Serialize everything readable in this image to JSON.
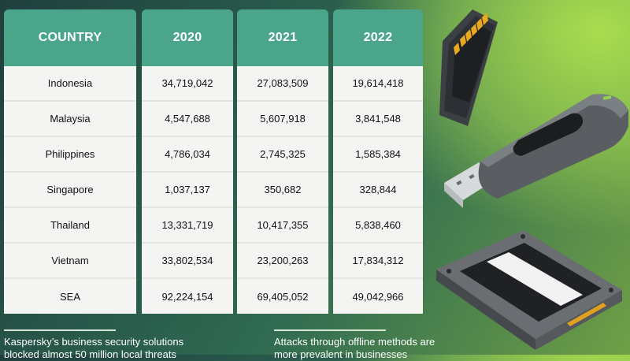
{
  "table": {
    "headers": [
      "COUNTRY",
      "2020",
      "2021",
      "2022"
    ],
    "rows": [
      {
        "country": "Indonesia",
        "y2020": "34,719,042",
        "y2021": "27,083,509",
        "y2022": "19,614,418"
      },
      {
        "country": "Malaysia",
        "y2020": "4,547,688",
        "y2021": "5,607,918",
        "y2022": "3,841,548"
      },
      {
        "country": "Philippines",
        "y2020": "4,786,034",
        "y2021": "2,745,325",
        "y2022": "1,585,384"
      },
      {
        "country": "Singapore",
        "y2020": "1,037,137",
        "y2021": "350,682",
        "y2022": "328,844"
      },
      {
        "country": "Thailand",
        "y2020": "13,331,719",
        "y2021": "10,417,355",
        "y2022": "5,838,460"
      },
      {
        "country": "Vietnam",
        "y2020": "33,802,534",
        "y2021": "23,200,263",
        "y2022": "17,834,312"
      },
      {
        "country": "SEA",
        "y2020": "92,224,154",
        "y2021": "69,405,052",
        "y2022": "49,042,966"
      }
    ]
  },
  "notes": {
    "left_line1": "Kaspersky’s business security solutions",
    "left_line2": "blocked almost 50 million local threats",
    "right_line1": "Attacks through offline methods are",
    "right_line2": "more prevalent in businesses"
  },
  "illustrations": [
    "sd-card-icon",
    "usb-drive-icon",
    "ssd-drive-icon"
  ],
  "colors": {
    "header_bg": "#4aa58b",
    "cell_bg": "#f4f4f2",
    "bg_dark": "#1f3f3e",
    "bg_light": "#a9dd4e"
  }
}
